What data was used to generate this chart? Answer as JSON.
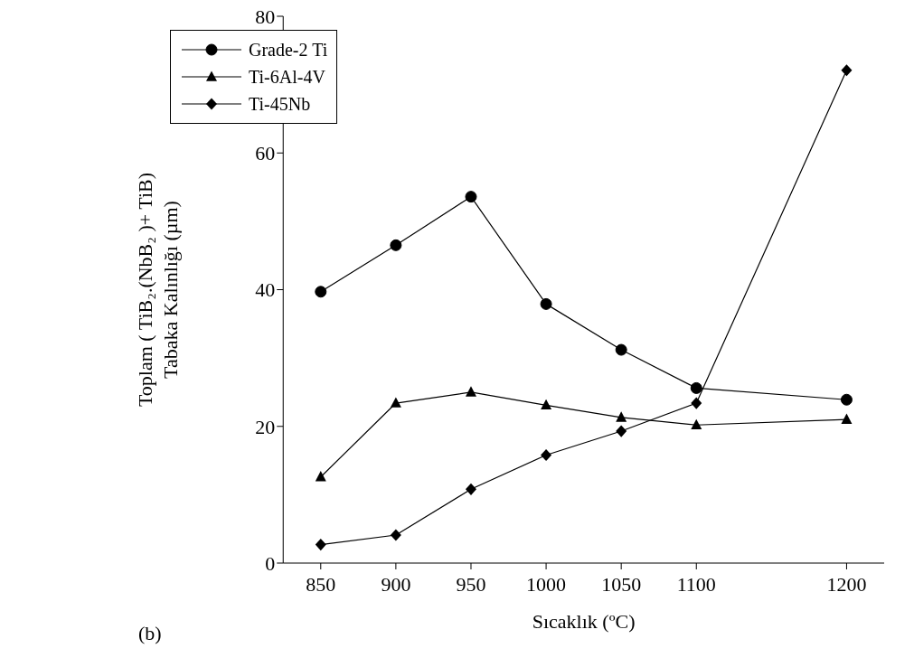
{
  "chart_data": {
    "type": "line",
    "xlabel": "Sıcaklık  (ºC)",
    "ylabel": "Toplam ( TiB₂.(NbB₂ )+ TiB)\nTabaka Kalınlığı (µm)",
    "annotations": [
      "(b)"
    ],
    "x": [
      850,
      900,
      950,
      1000,
      1050,
      1100,
      1200
    ],
    "series": [
      {
        "name": "Grade-2 Ti",
        "color": "#000000",
        "marker": "circle",
        "values": [
          39.7,
          46.5,
          53.6,
          37.9,
          31.2,
          25.6,
          23.9
        ]
      },
      {
        "name": "Ti-6Al-4V",
        "color": "#000000",
        "marker": "triangle",
        "values": [
          12.6,
          23.4,
          25.0,
          23.1,
          21.3,
          20.2,
          21.0
        ]
      },
      {
        "name": "Ti-45Nb",
        "color": "#000000",
        "marker": "diamond",
        "values": [
          2.7,
          4.1,
          10.8,
          15.8,
          19.3,
          23.4,
          72.1
        ]
      }
    ],
    "xlim": [
      825,
      1225
    ],
    "xticks": [
      850,
      900,
      950,
      1000,
      1050,
      1100,
      1200
    ],
    "ylim": [
      0,
      80
    ],
    "yticks": [
      0,
      20,
      40,
      60,
      80
    ],
    "grid": false,
    "legend": "top left",
    "line_style": "solid"
  }
}
